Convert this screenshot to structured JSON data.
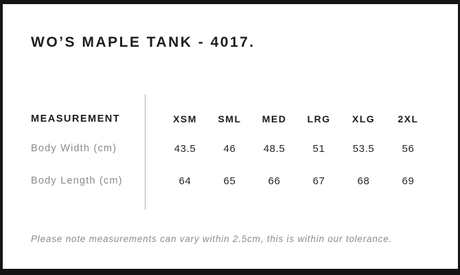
{
  "header": {
    "title": "WO’S MAPLE TANK - 4017."
  },
  "chart_data": {
    "type": "table",
    "title": "WO’S MAPLE TANK - 4017.",
    "columns": [
      "MEASUREMENT",
      "XSM",
      "SML",
      "MED",
      "LRG",
      "XLG",
      "2XL"
    ],
    "rows": [
      [
        "Body Width (cm)",
        "43.5",
        "46",
        "48.5",
        "51",
        "53.5",
        "56"
      ],
      [
        "Body Length (cm)",
        "64",
        "65",
        "66",
        "67",
        "68",
        "69"
      ]
    ],
    "note": "Please note measurements can vary within 2.5cm, this is within our tolerance."
  },
  "colors": {
    "frame": "#141414",
    "heading_text": "#1d1d1d",
    "muted_text": "#8a8a8a",
    "value_text": "#262626",
    "divider": "#b3b3b3",
    "background": "#ffffff"
  }
}
